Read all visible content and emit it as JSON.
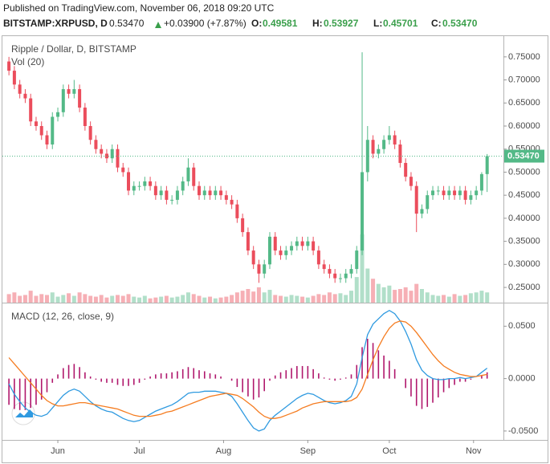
{
  "header": {
    "published": "Published on TradingView.com, November 06, 2018 09:20 UTC",
    "symbol": "BITSTAMP:XRPUSD, D",
    "last": "0.53470",
    "change": "+0.03900 (+7.87%)",
    "o_label": "O:",
    "o": "0.49581",
    "h_label": "H:",
    "h": "0.53927",
    "l_label": "L:",
    "l": "0.45701",
    "c_label": "C:",
    "c": "0.53470"
  },
  "chart_data": [
    {
      "type": "candlestick",
      "title": "Ripple / Dollar, D, BITSTAMP",
      "volume_title": "Vol (20)",
      "up_color": "#53b987",
      "down_color": "#eb4d5c",
      "grid": false,
      "xlim": [
        -1.2,
        91
      ],
      "xticks": [
        {
          "value": 9,
          "label": "Jun"
        },
        {
          "value": 24,
          "label": "Jul"
        },
        {
          "value": 39.5,
          "label": "Aug"
        },
        {
          "value": 55,
          "label": "Sep"
        },
        {
          "value": 70,
          "label": "Oct"
        },
        {
          "value": 85.5,
          "label": "Nov"
        }
      ],
      "ylim": [
        0.217,
        0.795
      ],
      "yticks": [
        {
          "value": 0.25,
          "label": "0.25000"
        },
        {
          "value": 0.3,
          "label": "0.30000"
        },
        {
          "value": 0.35,
          "label": "0.35000"
        },
        {
          "value": 0.4,
          "label": "0.40000"
        },
        {
          "value": 0.45,
          "label": "0.45000"
        },
        {
          "value": 0.5,
          "label": "0.50000"
        },
        {
          "value": 0.55,
          "label": "0.55000"
        },
        {
          "value": 0.6,
          "label": "0.60000"
        },
        {
          "value": 0.65,
          "label": "0.65000"
        },
        {
          "value": 0.7,
          "label": "0.70000"
        },
        {
          "value": 0.75,
          "label": "0.75000"
        }
      ],
      "open": [
        0.74,
        0.72,
        0.69,
        0.67,
        0.66,
        0.61,
        0.6,
        0.58,
        0.56,
        0.62,
        0.63,
        0.68,
        0.67,
        0.68,
        0.64,
        0.6,
        0.57,
        0.55,
        0.54,
        0.53,
        0.55,
        0.51,
        0.5,
        0.46,
        0.47,
        0.47,
        0.48,
        0.47,
        0.45,
        0.46,
        0.44,
        0.44,
        0.46,
        0.48,
        0.51,
        0.47,
        0.45,
        0.46,
        0.45,
        0.46,
        0.45,
        0.44,
        0.43,
        0.4,
        0.37,
        0.33,
        0.3,
        0.28,
        0.3,
        0.36,
        0.33,
        0.32,
        0.33,
        0.34,
        0.35,
        0.34,
        0.35,
        0.33,
        0.3,
        0.29,
        0.28,
        0.27,
        0.27,
        0.28,
        0.29,
        0.33,
        0.5,
        0.57,
        0.54,
        0.55,
        0.57,
        0.58,
        0.56,
        0.52,
        0.49,
        0.47,
        0.41,
        0.42,
        0.45,
        0.46,
        0.46,
        0.45,
        0.46,
        0.45,
        0.46,
        0.44,
        0.45,
        0.46,
        0.49581
      ],
      "high": [
        0.75,
        0.73,
        0.7,
        0.68,
        0.67,
        0.62,
        0.61,
        0.59,
        0.63,
        0.64,
        0.69,
        0.69,
        0.7,
        0.69,
        0.65,
        0.61,
        0.58,
        0.56,
        0.55,
        0.56,
        0.56,
        0.52,
        0.51,
        0.48,
        0.48,
        0.49,
        0.49,
        0.48,
        0.47,
        0.47,
        0.45,
        0.47,
        0.49,
        0.53,
        0.52,
        0.48,
        0.47,
        0.47,
        0.47,
        0.47,
        0.46,
        0.45,
        0.44,
        0.41,
        0.38,
        0.34,
        0.31,
        0.31,
        0.37,
        0.37,
        0.34,
        0.34,
        0.35,
        0.36,
        0.36,
        0.36,
        0.36,
        0.34,
        0.31,
        0.3,
        0.29,
        0.28,
        0.29,
        0.3,
        0.34,
        0.76,
        0.6,
        0.58,
        0.56,
        0.58,
        0.6,
        0.59,
        0.57,
        0.53,
        0.5,
        0.48,
        0.43,
        0.46,
        0.47,
        0.47,
        0.47,
        0.47,
        0.47,
        0.47,
        0.47,
        0.46,
        0.47,
        0.5,
        0.53927
      ],
      "low": [
        0.71,
        0.68,
        0.66,
        0.65,
        0.6,
        0.59,
        0.57,
        0.55,
        0.55,
        0.61,
        0.62,
        0.66,
        0.66,
        0.63,
        0.59,
        0.56,
        0.54,
        0.53,
        0.52,
        0.52,
        0.5,
        0.49,
        0.45,
        0.45,
        0.46,
        0.46,
        0.46,
        0.44,
        0.44,
        0.43,
        0.43,
        0.43,
        0.45,
        0.47,
        0.46,
        0.44,
        0.44,
        0.44,
        0.44,
        0.44,
        0.43,
        0.42,
        0.39,
        0.36,
        0.32,
        0.29,
        0.26,
        0.27,
        0.29,
        0.32,
        0.31,
        0.31,
        0.32,
        0.33,
        0.33,
        0.33,
        0.32,
        0.29,
        0.28,
        0.27,
        0.26,
        0.26,
        0.26,
        0.27,
        0.28,
        0.32,
        0.48,
        0.53,
        0.53,
        0.54,
        0.56,
        0.55,
        0.51,
        0.48,
        0.46,
        0.37,
        0.4,
        0.41,
        0.44,
        0.45,
        0.44,
        0.44,
        0.44,
        0.44,
        0.43,
        0.43,
        0.44,
        0.45,
        0.45701
      ],
      "close": [
        0.72,
        0.69,
        0.67,
        0.66,
        0.61,
        0.6,
        0.58,
        0.56,
        0.62,
        0.63,
        0.68,
        0.67,
        0.68,
        0.64,
        0.6,
        0.57,
        0.55,
        0.54,
        0.53,
        0.55,
        0.51,
        0.5,
        0.46,
        0.47,
        0.47,
        0.48,
        0.47,
        0.45,
        0.46,
        0.44,
        0.44,
        0.46,
        0.48,
        0.51,
        0.47,
        0.45,
        0.46,
        0.45,
        0.46,
        0.45,
        0.44,
        0.43,
        0.4,
        0.37,
        0.33,
        0.3,
        0.28,
        0.3,
        0.36,
        0.33,
        0.32,
        0.33,
        0.34,
        0.35,
        0.34,
        0.35,
        0.33,
        0.3,
        0.29,
        0.28,
        0.27,
        0.27,
        0.28,
        0.29,
        0.33,
        0.5,
        0.57,
        0.54,
        0.55,
        0.57,
        0.58,
        0.56,
        0.52,
        0.49,
        0.47,
        0.41,
        0.42,
        0.45,
        0.46,
        0.46,
        0.45,
        0.46,
        0.45,
        0.46,
        0.44,
        0.45,
        0.46,
        0.49581,
        0.5347
      ],
      "volume": [
        10,
        12,
        8,
        9,
        14,
        8,
        10,
        9,
        12,
        7,
        9,
        11,
        8,
        12,
        10,
        8,
        7,
        9,
        6,
        8,
        9,
        8,
        10,
        7,
        6,
        8,
        5,
        6,
        7,
        8,
        6,
        7,
        9,
        12,
        10,
        8,
        6,
        7,
        5,
        6,
        7,
        9,
        12,
        14,
        16,
        13,
        18,
        12,
        15,
        9,
        8,
        7,
        9,
        8,
        7,
        6,
        8,
        10,
        9,
        12,
        10,
        11,
        9,
        14,
        30,
        80,
        40,
        28,
        22,
        18,
        20,
        15,
        16,
        18,
        14,
        22,
        16,
        12,
        9,
        8,
        9,
        7,
        10,
        8,
        9,
        11,
        12,
        14,
        12
      ]
    },
    {
      "type": "macd",
      "title": "MACD (12, 26, close, 9)",
      "ylim": [
        -0.0585,
        0.0717
      ],
      "yticks": [
        {
          "value": -0.05,
          "label": "-0.0500"
        },
        {
          "value": 0,
          "label": "0.0000"
        },
        {
          "value": 0.05,
          "label": "0.0500"
        }
      ],
      "histogram": {
        "color": "#b0176c",
        "values": [
          -0.025,
          -0.029,
          -0.03,
          -0.03,
          -0.028,
          -0.025,
          -0.02,
          -0.013,
          -0.004,
          0.004,
          0.01,
          0.013,
          0.014,
          0.011,
          0.006,
          0.002,
          -0.001,
          -0.003,
          -0.004,
          -0.004,
          -0.006,
          -0.007,
          -0.007,
          -0.006,
          -0.004,
          -0.001,
          0.002,
          0.004,
          0.005,
          0.005,
          0.006,
          0.007,
          0.009,
          0.011,
          0.01,
          0.008,
          0.007,
          0.005,
          0.004,
          0.002,
          0.0,
          -0.002,
          -0.008,
          -0.013,
          -0.017,
          -0.02,
          -0.018,
          -0.012,
          -0.002,
          0.003,
          0.006,
          0.008,
          0.01,
          0.012,
          0.012,
          0.012,
          0.009,
          0.005,
          0.001,
          -0.001,
          -0.002,
          -0.001,
          0.001,
          0.004,
          0.013,
          0.03,
          0.038,
          0.034,
          0.027,
          0.022,
          0.017,
          0.009,
          0.0,
          -0.009,
          -0.017,
          -0.026,
          -0.029,
          -0.027,
          -0.023,
          -0.018,
          -0.013,
          -0.009,
          -0.006,
          -0.003,
          -0.003,
          -0.001,
          0.0,
          0.003,
          0.006
        ]
      },
      "series": [
        {
          "color": "#2f9ae0",
          "values": [
            -0.005,
            -0.015,
            -0.022,
            -0.028,
            -0.032,
            -0.035,
            -0.036,
            -0.034,
            -0.028,
            -0.022,
            -0.016,
            -0.012,
            -0.01,
            -0.012,
            -0.017,
            -0.022,
            -0.026,
            -0.029,
            -0.031,
            -0.032,
            -0.035,
            -0.038,
            -0.04,
            -0.041,
            -0.04,
            -0.037,
            -0.034,
            -0.031,
            -0.029,
            -0.027,
            -0.025,
            -0.022,
            -0.018,
            -0.014,
            -0.013,
            -0.013,
            -0.012,
            -0.012,
            -0.012,
            -0.013,
            -0.014,
            -0.017,
            -0.024,
            -0.032,
            -0.04,
            -0.047,
            -0.05,
            -0.048,
            -0.04,
            -0.035,
            -0.031,
            -0.027,
            -0.023,
            -0.019,
            -0.016,
            -0.014,
            -0.015,
            -0.018,
            -0.021,
            -0.023,
            -0.024,
            -0.023,
            -0.021,
            -0.017,
            -0.005,
            0.02,
            0.042,
            0.052,
            0.057,
            0.062,
            0.065,
            0.062,
            0.055,
            0.045,
            0.033,
            0.018,
            0.008,
            0.003,
            0.0,
            -0.001,
            -0.001,
            0.0,
            0.0,
            0.001,
            0.0,
            0.001,
            0.002,
            0.006,
            0.01
          ]
        },
        {
          "color": "#f57c20",
          "values": [
            0.02,
            0.014,
            0.008,
            0.002,
            -0.004,
            -0.01,
            -0.016,
            -0.021,
            -0.024,
            -0.026,
            -0.026,
            -0.025,
            -0.024,
            -0.023,
            -0.023,
            -0.024,
            -0.025,
            -0.026,
            -0.027,
            -0.028,
            -0.029,
            -0.031,
            -0.033,
            -0.035,
            -0.036,
            -0.036,
            -0.036,
            -0.035,
            -0.034,
            -0.032,
            -0.031,
            -0.029,
            -0.027,
            -0.025,
            -0.023,
            -0.021,
            -0.019,
            -0.017,
            -0.016,
            -0.015,
            -0.014,
            -0.015,
            -0.016,
            -0.019,
            -0.023,
            -0.027,
            -0.032,
            -0.036,
            -0.038,
            -0.038,
            -0.037,
            -0.035,
            -0.033,
            -0.031,
            -0.028,
            -0.026,
            -0.024,
            -0.023,
            -0.022,
            -0.022,
            -0.022,
            -0.022,
            -0.022,
            -0.021,
            -0.018,
            -0.01,
            0.004,
            0.018,
            0.03,
            0.04,
            0.048,
            0.053,
            0.055,
            0.054,
            0.05,
            0.044,
            0.037,
            0.03,
            0.023,
            0.017,
            0.012,
            0.009,
            0.006,
            0.004,
            0.003,
            0.002,
            0.002,
            0.003,
            0.004
          ]
        }
      ]
    }
  ]
}
